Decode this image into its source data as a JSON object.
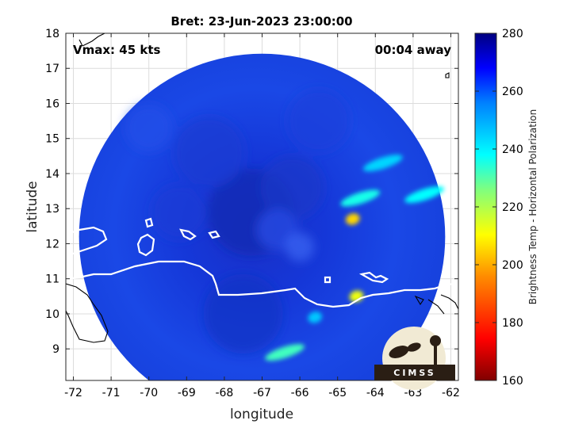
{
  "chart_data": {
    "type": "heatmap",
    "title": "Bret: 23-Jun-2023 23:00:00",
    "xlabel": "longitude",
    "ylabel": "latitude",
    "xlim": [
      -72.2,
      -61.8
    ],
    "ylim": [
      8.1,
      18.0
    ],
    "x_ticks": [
      -72,
      -71,
      -70,
      -69,
      -68,
      -67,
      -66,
      -65,
      -64,
      -63,
      -62
    ],
    "y_ticks": [
      9,
      10,
      11,
      12,
      13,
      14,
      15,
      16,
      17,
      18
    ],
    "grid": true,
    "annotations": {
      "left": "Vmax: 45 kts",
      "right": "00:04 away"
    },
    "colorbar": {
      "label": "Brightness Temp - Horizontal Polarization",
      "range": [
        160,
        280
      ],
      "ticks": [
        160,
        180,
        200,
        220,
        240,
        260,
        280
      ],
      "colormap": "jet"
    },
    "swath": {
      "center_lon": -67.0,
      "center_lat": 12.2,
      "radius_deg": 4.85
    },
    "features": [
      {
        "kind": "warm-band",
        "lon": -64.4,
        "lat": 13.3,
        "value": 236
      },
      {
        "kind": "warm-band",
        "lon": -62.7,
        "lat": 13.4,
        "value": 238
      },
      {
        "kind": "warm-band",
        "lon": -63.8,
        "lat": 14.3,
        "value": 244
      },
      {
        "kind": "hot-spot",
        "lon": -64.6,
        "lat": 12.7,
        "value": 205
      },
      {
        "kind": "hot-spot",
        "lon": -64.5,
        "lat": 10.5,
        "value": 212
      },
      {
        "kind": "warm-band",
        "lon": -66.4,
        "lat": 8.9,
        "value": 232
      },
      {
        "kind": "warm-spot",
        "lon": -65.6,
        "lat": 9.9,
        "value": 246
      }
    ]
  },
  "logo": {
    "text": "CIMSS"
  }
}
